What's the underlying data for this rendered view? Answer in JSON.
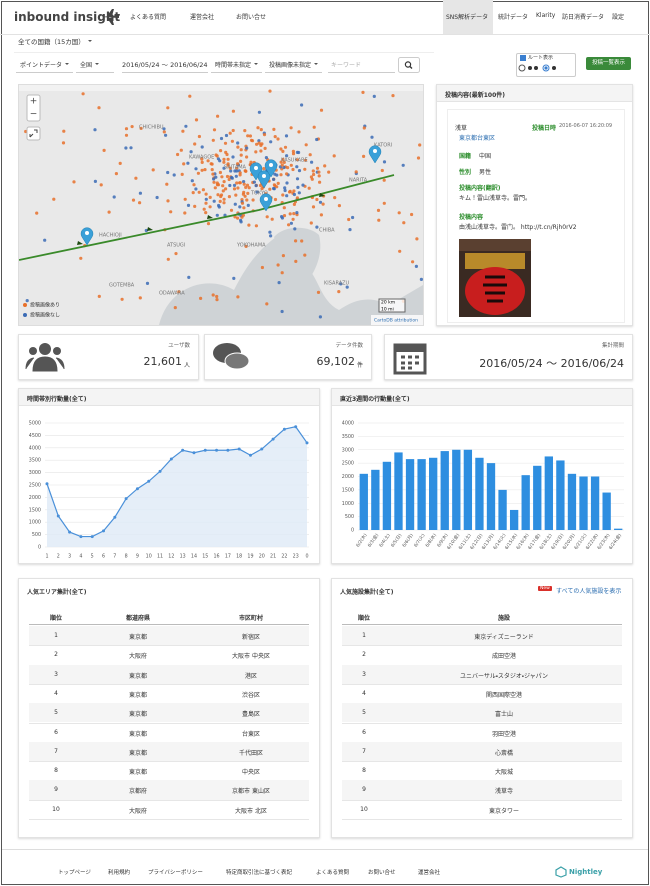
{
  "header": {
    "logo": "inbound insight",
    "nav_left": [
      "よくある質問",
      "運営会社",
      "お問い合せ"
    ],
    "nav_right": [
      "SNS解析データ",
      "統計データ",
      "Klarity",
      "訪日消費データ",
      "設定"
    ]
  },
  "filters": {
    "country": "全ての国籍（15カ国）",
    "data_type": "ポイントデータ",
    "region": "全国",
    "period": "2016/05/24 ～ 2016/06/24",
    "time": "時間帯未指定",
    "image": "投稿画像未指定",
    "keyword_placeholder": "キーワード",
    "route_label": "ルート表示",
    "list_button": "投稿一覧表示"
  },
  "map": {
    "zoom_in": "+",
    "zoom_out": "−",
    "labels": [
      "CHICHIBU",
      "KAWAGOE",
      "SAITAMA",
      "KASUKABE",
      "NARITA",
      "KATORI",
      "HACHIOJI",
      "TOKYO",
      "CHIBA",
      "YOKOHAMA",
      "ATSUGI",
      "KISARAZU",
      "ODAWARA",
      "GOTEMBA"
    ],
    "legend": [
      "投稿画像あり",
      "投稿画像なし"
    ],
    "scale": [
      "20 km",
      "10 mi"
    ],
    "attribution": "CartoDB attribution"
  },
  "post": {
    "title": "投稿内容(最新100件)",
    "place": "浅草",
    "time_label": "投稿日時",
    "time": "2016-06-07 16:20:09",
    "address": "東京都台東区",
    "fields": [
      {
        "label": "国籍",
        "value": "中国"
      },
      {
        "label": "性別",
        "value": "男性"
      },
      {
        "label": "投稿内容(翻訳)",
        "value": "キム！雷山浅草寺。雷門。"
      },
      {
        "label": "投稿内容",
        "value": "由浅山浅草寺。雷门。 http://t.cn/Rjh0rV2"
      }
    ]
  },
  "stats": [
    {
      "label": "ユーザ数",
      "value": "21,601",
      "unit": "人"
    },
    {
      "label": "データ件数",
      "value": "69,102",
      "unit": "件"
    },
    {
      "label": "集計期間",
      "value": "2016/05/24 ～ 2016/06/24"
    }
  ],
  "chart_data": [
    {
      "type": "line",
      "title": "時間帯別行動量(全て)",
      "categories": [
        "1",
        "2",
        "3",
        "4",
        "5",
        "6",
        "7",
        "8",
        "9",
        "10",
        "11",
        "12",
        "13",
        "14",
        "15",
        "16",
        "17",
        "18",
        "19",
        "20",
        "21",
        "22",
        "23",
        "0"
      ],
      "series": [
        {
          "color": "#4a90d9",
          "values": [
            2550,
            1250,
            600,
            420,
            420,
            650,
            1200,
            1950,
            2350,
            2650,
            3050,
            3550,
            3900,
            3800,
            3900,
            3900,
            3900,
            3950,
            3700,
            3950,
            4350,
            4750,
            4850,
            4200
          ]
        }
      ],
      "ylim": [
        0,
        5000
      ],
      "yticks": [
        0,
        500,
        1000,
        1500,
        2000,
        2500,
        3000,
        3500,
        4000,
        4500,
        5000
      ],
      "grid": true
    },
    {
      "type": "bar",
      "title": "直近3週間の行動量(全て)",
      "categories": [
        "6/2(木)",
        "6/3(金)",
        "6/4(土)",
        "6/5(日)",
        "6/6(月)",
        "6/7(火)",
        "6/8(水)",
        "6/9(木)",
        "6/10(金)",
        "6/11(土)",
        "6/12(日)",
        "6/13(月)",
        "6/14(火)",
        "6/15(水)",
        "6/16(木)",
        "6/17(金)",
        "6/18(土)",
        "6/19(日)",
        "6/20(月)",
        "6/21(火)",
        "6/22(水)",
        "6/23(木)",
        "6/24(金)"
      ],
      "values": [
        2100,
        2250,
        2550,
        2900,
        2650,
        2650,
        2700,
        2950,
        3000,
        3000,
        2700,
        2500,
        1500,
        750,
        2050,
        2400,
        2750,
        2600,
        2100,
        2000,
        2000,
        1400,
        50
      ],
      "color": "#2e8ee0",
      "ylim": [
        0,
        4000
      ],
      "yticks": [
        0,
        500,
        1000,
        1500,
        2000,
        2500,
        3000,
        3500,
        4000
      ],
      "grid": true
    }
  ],
  "area_table": {
    "title": "人気エリア集計(全て)",
    "headers": [
      "順位",
      "都道府県",
      "市区町村"
    ],
    "rows": [
      [
        "1",
        "東京都",
        "新宿区"
      ],
      [
        "2",
        "大阪府",
        "大阪市 中央区"
      ],
      [
        "3",
        "東京都",
        "港区"
      ],
      [
        "4",
        "東京都",
        "渋谷区"
      ],
      [
        "5",
        "東京都",
        "豊島区"
      ],
      [
        "6",
        "東京都",
        "台東区"
      ],
      [
        "7",
        "東京都",
        "千代田区"
      ],
      [
        "8",
        "東京都",
        "中央区"
      ],
      [
        "9",
        "京都府",
        "京都市 東山区"
      ],
      [
        "10",
        "大阪府",
        "大阪市 北区"
      ]
    ]
  },
  "facility_table": {
    "title": "人気施設集計(全て)",
    "badge": "New",
    "link": "すべての人気施設を表示",
    "headers": [
      "順位",
      "施設"
    ],
    "rows": [
      [
        "1",
        "東京ディズニーランド"
      ],
      [
        "2",
        "成田空港"
      ],
      [
        "3",
        "ユニバーサル・スタジオ・ジャパン"
      ],
      [
        "4",
        "関西国際空港"
      ],
      [
        "5",
        "富士山"
      ],
      [
        "6",
        "羽田空港"
      ],
      [
        "7",
        "心斎橋"
      ],
      [
        "8",
        "大阪城"
      ],
      [
        "9",
        "浅草寺"
      ],
      [
        "10",
        "東京タワー"
      ]
    ]
  },
  "footer": {
    "links": [
      "トップページ",
      "利用規約",
      "プライバシーポリシー",
      "特定商取引法に基づく表記",
      "よくある質問",
      "お問い合せ",
      "運営会社"
    ],
    "logo": "Nightley"
  }
}
